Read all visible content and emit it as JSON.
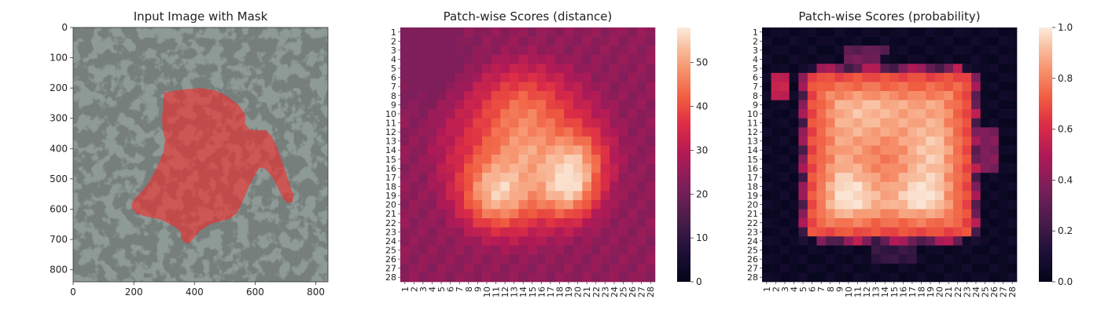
{
  "chart_data": [
    {
      "type": "image",
      "title": "Input Image with Mask",
      "xlim": [
        0,
        840
      ],
      "ylim": [
        0,
        840
      ],
      "x_ticks": [
        0,
        200,
        400,
        600,
        800
      ],
      "y_ticks": [
        0,
        100,
        200,
        300,
        400,
        500,
        600,
        700,
        800
      ],
      "mask_outline": [
        [
          300,
          215
        ],
        [
          360,
          205
        ],
        [
          420,
          200
        ],
        [
          470,
          208
        ],
        [
          510,
          228
        ],
        [
          548,
          258
        ],
        [
          568,
          290
        ],
        [
          567,
          318
        ],
        [
          583,
          338
        ],
        [
          638,
          340
        ],
        [
          655,
          360
        ],
        [
          672,
          395
        ],
        [
          688,
          440
        ],
        [
          702,
          480
        ],
        [
          714,
          520
        ],
        [
          728,
          556
        ],
        [
          723,
          575
        ],
        [
          707,
          580
        ],
        [
          692,
          565
        ],
        [
          673,
          525
        ],
        [
          657,
          495
        ],
        [
          645,
          480
        ],
        [
          630,
          465
        ],
        [
          613,
          464
        ],
        [
          597,
          492
        ],
        [
          582,
          520
        ],
        [
          567,
          555
        ],
        [
          552,
          590
        ],
        [
          538,
          615
        ],
        [
          515,
          632
        ],
        [
          480,
          642
        ],
        [
          455,
          648
        ],
        [
          420,
          670
        ],
        [
          398,
          695
        ],
        [
          380,
          715
        ],
        [
          360,
          705
        ],
        [
          355,
          680
        ],
        [
          345,
          665
        ],
        [
          320,
          650
        ],
        [
          290,
          635
        ],
        [
          260,
          628
        ],
        [
          235,
          623
        ],
        [
          210,
          615
        ],
        [
          195,
          598
        ],
        [
          193,
          580
        ],
        [
          210,
          558
        ],
        [
          232,
          535
        ],
        [
          250,
          512
        ],
        [
          268,
          478
        ],
        [
          284,
          445
        ],
        [
          298,
          410
        ],
        [
          303,
          372
        ],
        [
          295,
          335
        ],
        [
          293,
          300
        ],
        [
          297,
          260
        ],
        [
          300,
          215
        ]
      ],
      "mask_color": "#ff2020"
    },
    {
      "type": "heatmap",
      "title": "Patch-wise Scores (distance)",
      "rows": 28,
      "cols": 28,
      "tick_labels": [
        "1",
        "2",
        "3",
        "4",
        "5",
        "6",
        "7",
        "8",
        "9",
        "10",
        "11",
        "12",
        "13",
        "14",
        "15",
        "16",
        "17",
        "18",
        "19",
        "20",
        "21",
        "22",
        "23",
        "24",
        "25",
        "26",
        "27",
        "28"
      ],
      "colorbar": {
        "min": 0,
        "max": 58,
        "ticks": [
          0,
          10,
          20,
          30,
          40,
          50
        ]
      },
      "colormap": "rocket"
    },
    {
      "type": "heatmap",
      "title": "Patch-wise Scores (probability)",
      "rows": 28,
      "cols": 28,
      "tick_labels": [
        "1",
        "2",
        "3",
        "4",
        "5",
        "6",
        "7",
        "8",
        "9",
        "10",
        "11",
        "12",
        "13",
        "14",
        "15",
        "16",
        "17",
        "18",
        "19",
        "20",
        "21",
        "22",
        "23",
        "24",
        "25",
        "26",
        "27",
        "28"
      ],
      "colorbar": {
        "min": 0.0,
        "max": 1.0,
        "ticks": [
          "0.0",
          "0.2",
          "0.4",
          "0.6",
          "0.8",
          "1.0"
        ]
      },
      "colormap": "rocket"
    }
  ]
}
